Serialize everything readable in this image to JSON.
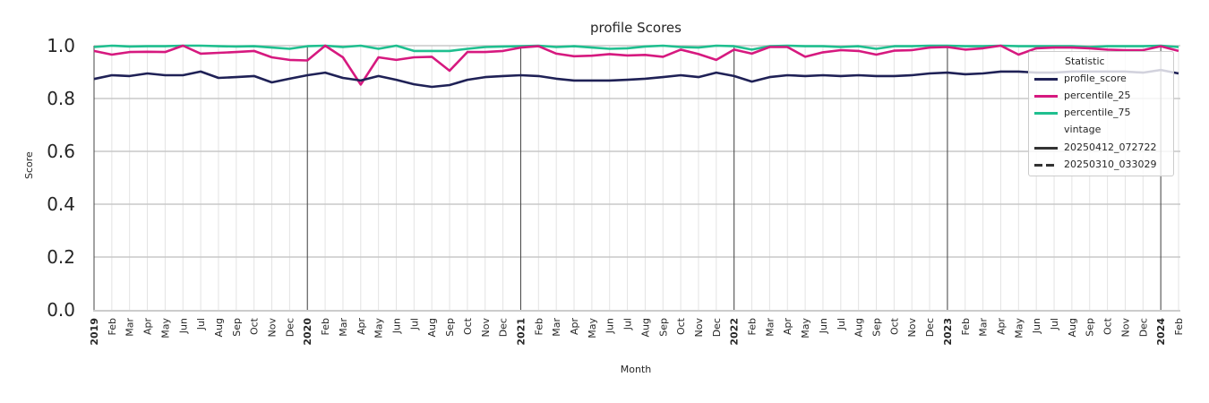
{
  "chart_data": {
    "type": "line",
    "title": "profile Scores",
    "xlabel": "Month",
    "ylabel": "Score",
    "ylim": [
      0.0,
      1.0
    ],
    "yticks": [
      "0.0",
      "0.2",
      "0.4",
      "0.6",
      "0.8",
      "1.0"
    ],
    "grid": true,
    "legend_position": "upper right",
    "x": [
      "2019",
      "Feb",
      "Mar",
      "Apr",
      "May",
      "Jun",
      "Jul",
      "Aug",
      "Sep",
      "Oct",
      "Nov",
      "Dec",
      "2020",
      "Feb",
      "Mar",
      "Apr",
      "May",
      "Jun",
      "Jul",
      "Aug",
      "Sep",
      "Oct",
      "Nov",
      "Dec",
      "2021",
      "Feb",
      "Mar",
      "Apr",
      "May",
      "Jun",
      "Jul",
      "Aug",
      "Sep",
      "Oct",
      "Nov",
      "Dec",
      "2022",
      "Feb",
      "Mar",
      "Apr",
      "May",
      "Jun",
      "Jul",
      "Aug",
      "Sep",
      "Oct",
      "Nov",
      "Dec",
      "2023",
      "Feb",
      "Mar",
      "Apr",
      "May",
      "Jun",
      "Jul",
      "Aug",
      "Sep",
      "Oct",
      "Nov",
      "Dec",
      "2024",
      "Feb"
    ],
    "series": [
      {
        "name": "profile_score",
        "color": "#1f2156",
        "vintage": "20250412_072722",
        "values": [
          0.874,
          0.888,
          0.885,
          0.895,
          0.888,
          0.888,
          0.902,
          0.878,
          0.881,
          0.885,
          0.861,
          0.875,
          0.888,
          0.898,
          0.878,
          0.868,
          0.885,
          0.871,
          0.854,
          0.844,
          0.851,
          0.871,
          0.881,
          0.885,
          0.888,
          0.885,
          0.875,
          0.868,
          0.868,
          0.868,
          0.871,
          0.875,
          0.881,
          0.888,
          0.881,
          0.898,
          0.885,
          0.864,
          0.881,
          0.888,
          0.885,
          0.888,
          0.885,
          0.888,
          0.885,
          0.885,
          0.888,
          0.895,
          0.898,
          0.892,
          0.895,
          0.902,
          0.902,
          0.898,
          0.898,
          0.902,
          0.902,
          0.902,
          0.902,
          0.898,
          0.908,
          0.895
        ]
      },
      {
        "name": "percentile_25",
        "color": "#d6197f",
        "vintage": "20250412_072722",
        "values": [
          0.98,
          0.966,
          0.976,
          0.977,
          0.976,
          1.0,
          0.97,
          0.973,
          0.976,
          0.98,
          0.956,
          0.946,
          0.944,
          1.0,
          0.956,
          0.853,
          0.956,
          0.946,
          0.956,
          0.958,
          0.905,
          0.976,
          0.976,
          0.98,
          0.993,
          0.998,
          0.97,
          0.96,
          0.962,
          0.968,
          0.963,
          0.965,
          0.958,
          0.985,
          0.968,
          0.946,
          0.985,
          0.97,
          0.995,
          0.995,
          0.958,
          0.975,
          0.983,
          0.98,
          0.966,
          0.981,
          0.983,
          0.993,
          0.995,
          0.985,
          0.99,
          1.0,
          0.966,
          0.99,
          0.993,
          0.993,
          0.99,
          0.985,
          0.983,
          0.983,
          0.998,
          0.98
        ]
      },
      {
        "name": "percentile_75",
        "color": "#1fbf8f",
        "vintage": "20250412_072722",
        "values": [
          0.995,
          1.0,
          0.997,
          0.998,
          0.998,
          1.0,
          1.0,
          0.998,
          0.997,
          0.998,
          0.993,
          0.988,
          0.998,
          1.0,
          0.995,
          1.0,
          0.988,
          1.0,
          0.98,
          0.98,
          0.98,
          0.988,
          0.995,
          0.997,
          0.998,
          1.0,
          0.995,
          0.998,
          0.993,
          0.988,
          0.99,
          0.997,
          1.0,
          0.995,
          0.993,
          1.0,
          0.998,
          0.985,
          0.998,
          1.0,
          0.998,
          0.998,
          0.995,
          0.998,
          0.988,
          0.998,
          0.998,
          1.0,
          1.0,
          0.998,
          0.998,
          1.0,
          0.998,
          0.998,
          0.998,
          0.998,
          0.995,
          0.998,
          0.998,
          0.998,
          1.0,
          0.995
        ]
      }
    ],
    "legend": {
      "title": "Statistic",
      "entries": [
        {
          "label": "profile_score",
          "color": "#1f2156",
          "style": "solid"
        },
        {
          "label": "percentile_25",
          "color": "#d6197f",
          "style": "solid"
        },
        {
          "label": "percentile_75",
          "color": "#1fbf8f",
          "style": "solid"
        }
      ],
      "subtitle": "vintage",
      "vintage_entries": [
        {
          "label": "20250412_072722",
          "color": "#333333",
          "style": "solid"
        },
        {
          "label": "20250310_033029",
          "color": "#333333",
          "style": "dashed"
        }
      ]
    }
  }
}
